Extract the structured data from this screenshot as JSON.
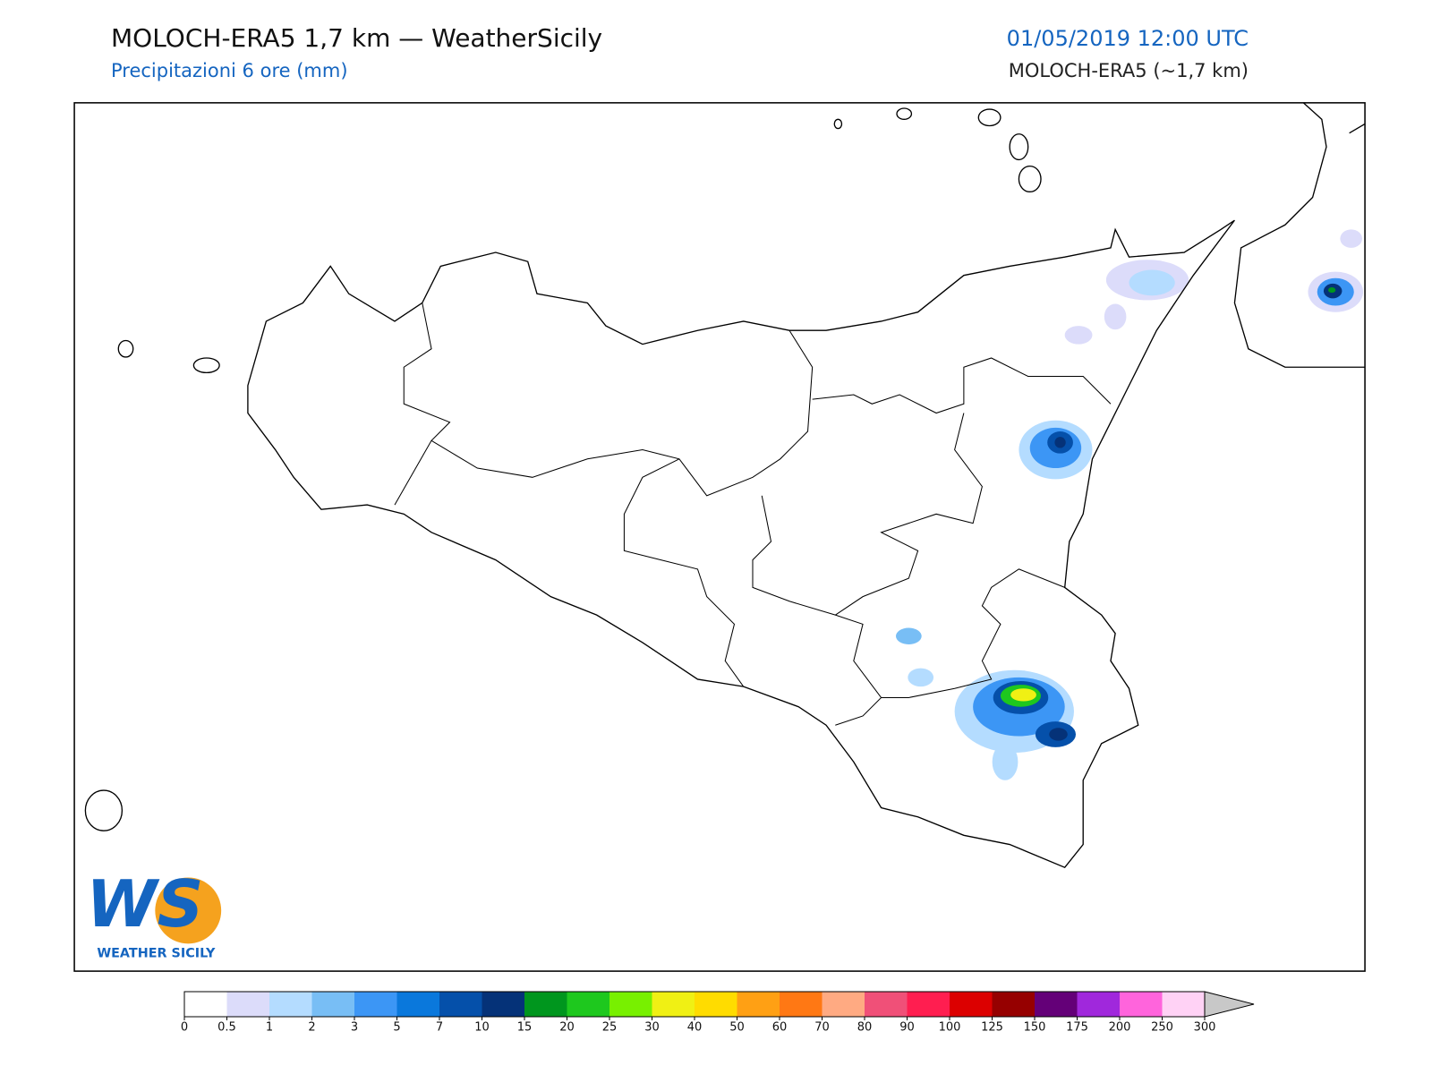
{
  "header": {
    "title": "MOLOCH-ERA5 1,7 km — WeatherSicily",
    "subtitle": "Precipitazioni 6 ore (mm)",
    "datetime": "01/05/2019 12:00 UTC",
    "model": "MOLOCH-ERA5 (~1,7 km)"
  },
  "logo": {
    "mark": "WS",
    "name": "WEATHER SICILY"
  },
  "colorbar": {
    "ticks": [
      0,
      0.5,
      1,
      2,
      3,
      5,
      7,
      10,
      15,
      20,
      25,
      30,
      40,
      50,
      60,
      70,
      80,
      90,
      100,
      125,
      150,
      175,
      200,
      250,
      300
    ],
    "colors": [
      "#ffffff",
      "#dcdcfa",
      "#b4dcff",
      "#78bef5",
      "#3c96f5",
      "#0a78dc",
      "#0550aa",
      "#053278",
      "#00961e",
      "#1ec81e",
      "#78f000",
      "#f0f014",
      "#ffdc00",
      "#ffa014",
      "#ff7814",
      "#ffaa82",
      "#f05078",
      "#ff1e50",
      "#dc0000",
      "#960000",
      "#640078",
      "#a028dc",
      "#ff64dc",
      "#ffd2f5"
    ],
    "extend_color": "#c8c8c8"
  }
}
